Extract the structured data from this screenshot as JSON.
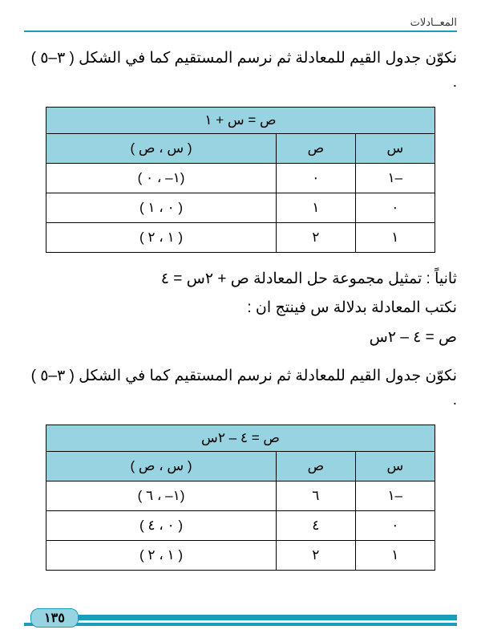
{
  "header_title": "المعــادلات",
  "para1": "نكوّن جدول القيم للمعادلة ثم نرسم المستقيم كما في الشكل ( ٣–٥ ) .",
  "table1": {
    "title": "ص = س + ١",
    "columns": [
      "س",
      "ص",
      "( س ، ص )"
    ],
    "rows": [
      [
        "–١",
        "٠",
        "(١– ، ٠ )"
      ],
      [
        "٠",
        "١",
        "( ٠ ، ١ )"
      ],
      [
        "١",
        "٢",
        "( ١ ، ٢ )"
      ]
    ],
    "header_bg": "#97d3e0",
    "border_color": "#000000",
    "cell_bg": "#ffffff"
  },
  "para2": "ثانياً : تمثيل مجموعة حل المعادلة ص + ٢س = ٤",
  "para3": "نكتب المعادلة بدلالة  س  فينتج ان  :",
  "para4": "ص = ٤ – ٢س",
  "para5": "نكوّن جدول القيم للمعادلة ثم نرسم المستقيم كما في الشكل ( ٣–٥ ) .",
  "table2": {
    "title": "ص = ٤ – ٢س",
    "columns": [
      "س",
      "ص",
      "( س ، ص )"
    ],
    "rows": [
      [
        "–١",
        "٦",
        "(١– ، ٦ )"
      ],
      [
        "٠",
        "٤",
        "( ٠ ، ٤ )"
      ],
      [
        "١",
        "٢",
        "( ١ ، ٢ )"
      ]
    ],
    "header_bg": "#97d3e0",
    "border_color": "#000000",
    "cell_bg": "#ffffff"
  },
  "page_number": "١٣٥",
  "colors": {
    "accent": "#1a9db8",
    "table_header": "#97d3e0",
    "text": "#000000",
    "bg": "#ffffff"
  }
}
